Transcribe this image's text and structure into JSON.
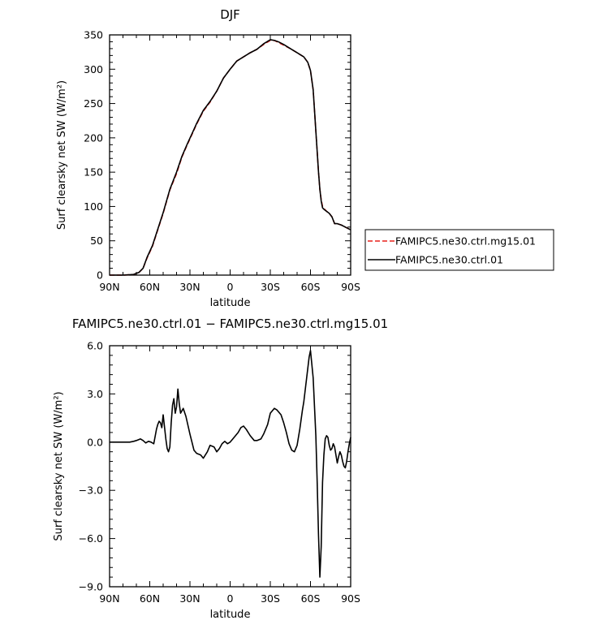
{
  "chart_data": [
    {
      "type": "line",
      "title": "DJF",
      "xlabel": "latitude",
      "ylabel": "Surf clearsky net SW (W/m²)",
      "xlim": [
        90,
        -90
      ],
      "ylim": [
        0,
        350
      ],
      "x_ticks": [
        90,
        60,
        30,
        0,
        -30,
        -60,
        -90
      ],
      "x_tick_labels": [
        "90N",
        "60N",
        "30N",
        "0",
        "30S",
        "60S",
        "90S"
      ],
      "y_ticks": [
        0,
        50,
        100,
        150,
        200,
        250,
        300,
        350
      ],
      "y_tick_labels": [
        "0",
        "50",
        "100",
        "150",
        "200",
        "250",
        "300",
        "350"
      ],
      "grid": false,
      "legend": "outside-right",
      "series": [
        {
          "name": "FAMIPC5.ne30.ctrl.mg15.01",
          "color": "#e8211c",
          "dash": "dashed",
          "x": [
            90,
            80,
            72,
            68,
            65,
            62,
            58,
            55,
            50,
            45,
            40,
            36,
            32,
            28,
            25,
            20,
            15,
            10,
            5,
            0,
            -5,
            -10,
            -15,
            -20,
            -25,
            -30,
            -33,
            -36,
            -40,
            -45,
            -50,
            -55,
            -58,
            -60,
            -62,
            -63,
            -64,
            -65,
            -66,
            -67,
            -68,
            -69,
            -70,
            -72,
            -74,
            -76,
            -78,
            -80,
            -83,
            -86,
            -90
          ],
          "y": [
            0,
            0,
            1,
            4,
            10,
            25,
            42,
            60,
            90,
            124,
            148,
            172,
            190,
            207,
            220,
            239,
            252,
            268,
            287,
            300,
            312,
            318,
            324,
            329,
            336,
            342,
            342,
            339,
            335,
            330,
            324,
            318,
            310,
            298,
            270,
            240,
            210,
            180,
            150,
            125,
            110,
            100,
            97,
            93,
            90,
            85,
            75,
            75,
            73,
            70,
            66
          ]
        },
        {
          "name": "FAMIPC5.ne30.ctrl.01",
          "color": "#000000",
          "dash": "solid",
          "x": [
            90,
            80,
            72,
            68,
            65,
            62,
            58,
            55,
            50,
            45,
            40,
            36,
            32,
            28,
            25,
            20,
            15,
            10,
            5,
            0,
            -5,
            -10,
            -15,
            -20,
            -25,
            -30,
            -33,
            -36,
            -40,
            -45,
            -50,
            -55,
            -58,
            -60,
            -62,
            -63,
            -64,
            -65,
            -66,
            -67,
            -68,
            -69,
            -70,
            -72,
            -74,
            -76,
            -78,
            -80,
            -83,
            -86,
            -90
          ],
          "y": [
            0,
            0,
            1,
            4,
            10,
            26,
            43,
            61,
            91,
            125,
            150,
            173,
            191,
            208,
            221,
            240,
            253,
            268,
            287,
            300,
            312,
            318,
            324,
            329,
            337,
            343,
            342,
            340,
            336,
            330,
            324,
            318,
            310,
            298,
            270,
            240,
            210,
            180,
            150,
            125,
            108,
            98,
            96,
            93,
            90,
            85,
            75,
            75,
            73,
            70,
            66
          ]
        }
      ]
    },
    {
      "type": "line",
      "title": "FAMIPC5.ne30.ctrl.01 − FAMIPC5.ne30.ctrl.mg15.01",
      "xlabel": "latitude",
      "ylabel": "Surf clearsky net SW (W/m²)",
      "xlim": [
        90,
        -90
      ],
      "ylim": [
        -9.0,
        6.0
      ],
      "x_ticks": [
        90,
        60,
        30,
        0,
        -30,
        -60,
        -90
      ],
      "x_tick_labels": [
        "90N",
        "60N",
        "30N",
        "0",
        "30S",
        "60S",
        "90S"
      ],
      "y_ticks": [
        6.0,
        3.0,
        0.0,
        -3.0,
        -6.0,
        -9.0
      ],
      "y_tick_labels": [
        "6.0",
        "3.0",
        "0.0",
        "−3.0",
        "−6.0",
        "−9.0"
      ],
      "grid": false,
      "series": [
        {
          "color": "#000000",
          "dash": "solid",
          "x": [
            90,
            75,
            72,
            70,
            67,
            65,
            63,
            61,
            59,
            57,
            55,
            54,
            53,
            52,
            51,
            50,
            48,
            47,
            46,
            45,
            44,
            43,
            42,
            41,
            40,
            39,
            38,
            37,
            35,
            33,
            30,
            27,
            25,
            22,
            20,
            17,
            15,
            12,
            10,
            8,
            6,
            4,
            2,
            0,
            -2,
            -4,
            -6,
            -8,
            -10,
            -12,
            -15,
            -18,
            -20,
            -23,
            -25,
            -28,
            -30,
            -33,
            -35,
            -38,
            -40,
            -42,
            -44,
            -46,
            -48,
            -50,
            -52,
            -54,
            -55,
            -56,
            -57,
            -58,
            -59,
            -60,
            -62,
            -64,
            -65,
            -66,
            -67,
            -68,
            -69,
            -70,
            -71,
            -72,
            -73,
            -74,
            -75,
            -76,
            -77,
            -78,
            -79,
            -80,
            -81,
            -82,
            -83,
            -84,
            -85,
            -86,
            -87,
            -88,
            -89,
            -90
          ],
          "y": [
            0,
            0,
            0.05,
            0.1,
            0.2,
            0.1,
            -0.05,
            0.05,
            0,
            -0.1,
            0.8,
            1.1,
            1.3,
            1.2,
            0.9,
            1.7,
            0.2,
            -0.4,
            -0.6,
            -0.3,
            1.2,
            2.3,
            2.7,
            1.8,
            2.2,
            3.3,
            2.4,
            1.8,
            2.1,
            1.6,
            0.5,
            -0.5,
            -0.7,
            -0.8,
            -1.0,
            -0.6,
            -0.2,
            -0.3,
            -0.6,
            -0.4,
            -0.1,
            0.05,
            -0.1,
            0.0,
            0.2,
            0.4,
            0.6,
            0.9,
            1.0,
            0.8,
            0.4,
            0.1,
            0.1,
            0.2,
            0.5,
            1.1,
            1.8,
            2.1,
            2.0,
            1.7,
            1.2,
            0.6,
            -0.1,
            -0.5,
            -0.6,
            -0.2,
            0.8,
            2.0,
            2.5,
            3.2,
            3.9,
            4.6,
            5.3,
            5.7,
            4.0,
            0.4,
            -2.5,
            -5.8,
            -8.4,
            -6.5,
            -2.5,
            -0.8,
            0.2,
            0.4,
            0.3,
            -0.2,
            -0.5,
            -0.4,
            -0.1,
            -0.3,
            -0.8,
            -1.3,
            -0.9,
            -0.6,
            -0.8,
            -1.2,
            -1.5,
            -1.6,
            -1.2,
            -0.6,
            -0.1,
            0.3
          ]
        }
      ]
    }
  ]
}
